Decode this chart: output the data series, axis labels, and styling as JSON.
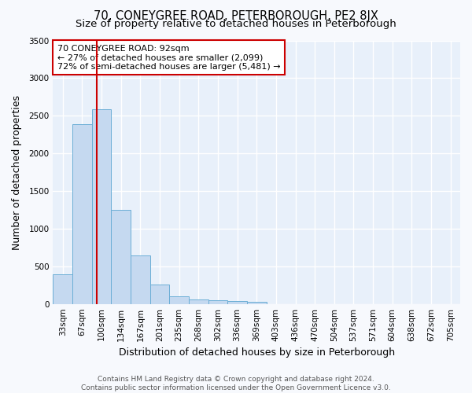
{
  "title": "70, CONEYGREE ROAD, PETERBOROUGH, PE2 8JX",
  "subtitle": "Size of property relative to detached houses in Peterborough",
  "xlabel": "Distribution of detached houses by size in Peterborough",
  "ylabel": "Number of detached properties",
  "footer_line1": "Contains HM Land Registry data © Crown copyright and database right 2024.",
  "footer_line2": "Contains public sector information licensed under the Open Government Licence v3.0.",
  "bin_labels": [
    "33sqm",
    "67sqm",
    "100sqm",
    "134sqm",
    "167sqm",
    "201sqm",
    "235sqm",
    "268sqm",
    "302sqm",
    "336sqm",
    "369sqm",
    "403sqm",
    "436sqm",
    "470sqm",
    "504sqm",
    "537sqm",
    "571sqm",
    "604sqm",
    "638sqm",
    "672sqm",
    "705sqm"
  ],
  "bar_values": [
    390,
    2390,
    2590,
    1250,
    640,
    260,
    105,
    58,
    50,
    42,
    30,
    0,
    0,
    0,
    0,
    0,
    0,
    0,
    0,
    0,
    0
  ],
  "bar_color": "#c5d9f0",
  "bar_edgecolor": "#6baed6",
  "vline_color": "#cc0000",
  "annotation_text": "70 CONEYGREE ROAD: 92sqm\n← 27% of detached houses are smaller (2,099)\n72% of semi-detached houses are larger (5,481) →",
  "ylim": [
    0,
    3500
  ],
  "yticks": [
    0,
    500,
    1000,
    1500,
    2000,
    2500,
    3000,
    3500
  ],
  "fig_bg_color": "#f7f9fd",
  "ax_bg_color": "#e8f0fa",
  "grid_color": "#ffffff",
  "title_fontsize": 10.5,
  "subtitle_fontsize": 9.5,
  "axis_label_fontsize": 9,
  "tick_fontsize": 7.5,
  "annotation_fontsize": 8
}
